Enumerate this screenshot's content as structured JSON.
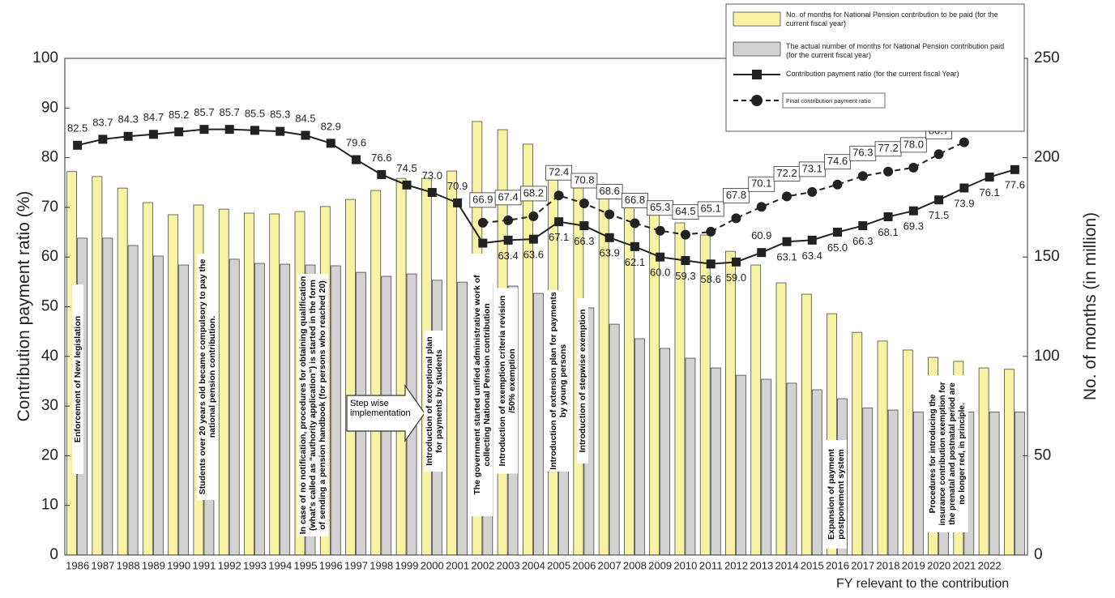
{
  "chart_data": {
    "type": "bar",
    "categories": [
      "1986",
      "1987",
      "1988",
      "1989",
      "1990",
      "1991",
      "1992",
      "1993",
      "1994",
      "1995",
      "1996",
      "1997",
      "1998",
      "1999",
      "2000",
      "2001",
      "2002",
      "2003",
      "2004",
      "2005",
      "2006",
      "2007",
      "2008",
      "2009",
      "2010",
      "2011",
      "2012",
      "2013",
      "2014",
      "2015",
      "2016",
      "2017",
      "2018",
      "2019",
      "2020",
      "2021",
      "2022",
      null
    ],
    "x_label": "FY relevant to the contribution",
    "y_label": "Contribution payment ratio (%)",
    "y2_label": "No. of months (in million)",
    "ylim": [
      0,
      100
    ],
    "yticks": [
      0,
      10,
      20,
      30,
      40,
      50,
      60,
      70,
      80,
      90,
      100
    ],
    "y2lim": [
      0,
      250
    ],
    "y2ticks": [
      0,
      50,
      100,
      150,
      200,
      250
    ],
    "series": [
      {
        "name": "No. of months for National Pension contribution to be paid (for the current fiscal year)",
        "type": "bar",
        "axis": "y2",
        "color": "#f8f2a4",
        "values": [
          193,
          190.5,
          184.7,
          177.4,
          171.3,
          176.2,
          174.1,
          172.1,
          171.7,
          172.9,
          175.4,
          179,
          183.5,
          189.6,
          189.6,
          193.3,
          218.2,
          214.1,
          206.8,
          191.3,
          187.6,
          182.3,
          175.8,
          173.7,
          167.2,
          161.1,
          152.9,
          146,
          137,
          131.3,
          121.5,
          112.1,
          107.7,
          103.2,
          99.5,
          97.5,
          94.2,
          93.5
        ]
      },
      {
        "name": "The actual  number of months for National Pension contribution paid (for the current fiscal year)",
        "type": "bar",
        "axis": "y2",
        "color": "#d2d2d2",
        "values": [
          159.5,
          159.5,
          155.8,
          150.5,
          146,
          150.9,
          148.9,
          146.8,
          146.4,
          146,
          145.6,
          142.3,
          140.3,
          141.5,
          138.3,
          137.4,
          136.6,
          135.4,
          131.7,
          128.5,
          124.4,
          116.2,
          108.9,
          104,
          99.1,
          94.2,
          90.5,
          88.5,
          86.5,
          83.2,
          78.7,
          74,
          73,
          72,
          71,
          72,
          72,
          72
        ]
      },
      {
        "name": "Contribution payment ratio (for the current fiscal Year)",
        "type": "line",
        "dashed": false,
        "marker": "square",
        "color": "#222222",
        "values": [
          82.5,
          83.7,
          84.3,
          84.7,
          85.2,
          85.7,
          85.7,
          85.5,
          85.3,
          84.5,
          82.9,
          79.6,
          76.6,
          74.5,
          73.0,
          70.9,
          62.8,
          63.4,
          63.6,
          67.1,
          66.3,
          63.9,
          62.1,
          60.0,
          59.3,
          58.6,
          59.0,
          60.9,
          63.1,
          63.4,
          65.0,
          66.3,
          68.1,
          69.3,
          71.5,
          73.9,
          76.1,
          77.6
        ],
        "value_labels": [
          "82.5",
          "83.7",
          "84.3",
          "84.7",
          "85.2",
          "85.7",
          "85.7",
          "85.5",
          "85.3",
          "84.5",
          "82.9",
          "79.6",
          "76.6",
          "74.5",
          "73.0",
          "70.9",
          "62.8",
          "63.4",
          "63.6",
          "67.1",
          "66.3",
          "63.9",
          "62.1",
          "60.0",
          "59.3",
          "58.6",
          "59.0",
          "60.9",
          "63.1",
          "63.4",
          "65.0",
          "66.3",
          "68.1",
          "69.3",
          "71.5",
          "73.9",
          "76.1",
          "77.6"
        ]
      },
      {
        "name": "Final contribution payment ratio",
        "type": "line",
        "dashed": true,
        "marker": "circle",
        "color": "#222222",
        "values": [
          null,
          null,
          null,
          null,
          null,
          null,
          null,
          null,
          null,
          null,
          null,
          null,
          null,
          null,
          null,
          null,
          66.9,
          67.4,
          68.2,
          72.4,
          70.8,
          68.6,
          66.8,
          65.3,
          64.5,
          65.1,
          67.8,
          70.1,
          72.2,
          73.1,
          74.6,
          76.3,
          77.2,
          78.0,
          80.7,
          83.1,
          null,
          null
        ],
        "value_labels": [
          null,
          null,
          null,
          null,
          null,
          null,
          null,
          null,
          null,
          null,
          null,
          null,
          null,
          null,
          null,
          null,
          "66.9",
          "67.4",
          "68.2",
          "72.4",
          "70.8",
          "68.6",
          "66.8",
          "65.3",
          "64.5",
          "65.1",
          "67.8",
          "70.1",
          "72.2",
          "73.1",
          "74.6",
          "76.3",
          "77.2",
          "78.0",
          "80.7",
          "83.1",
          null,
          null
        ]
      }
    ],
    "annotations": [
      "Enforcement of New legislation",
      "Students over 20 years old became compulsory to pay the national pension contribution.",
      "In case of no notification, procedures for obtaining qualification (what's called as “authority application”) is started in the form of sending a pension handbook (for persons who reached 20)",
      "Step wise implementation",
      "Introduction of exceptional plan for payments by students",
      "The government started unified administrative work of collecting National Pension contribution",
      "Introduction of exemption criteria revision /50% exemption",
      "Introduction of extension plan for payments by young persons",
      "Introduction of stepwise exemption",
      "Expansion of payment postponement system",
      "Procedures for introducing the insurance contribution exemption for the prenatal and postnatal period are no longer red, in principle."
    ]
  }
}
